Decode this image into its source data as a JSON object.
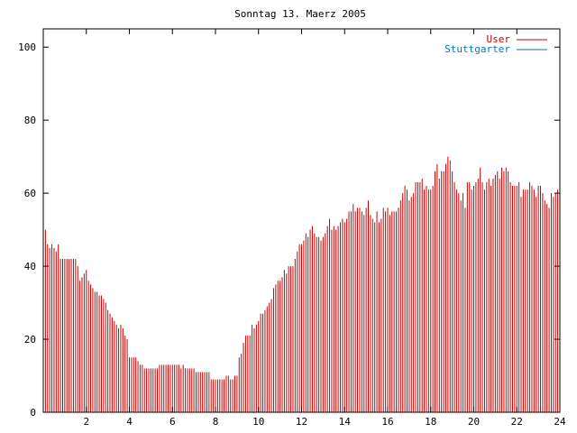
{
  "chart_data": {
    "type": "bar",
    "title": "Sonntag 13. Maerz 2005",
    "xlabel": "",
    "ylabel": "",
    "xlim": [
      0,
      24
    ],
    "ylim": [
      0,
      105
    ],
    "xticks": [
      2,
      4,
      6,
      8,
      10,
      12,
      14,
      16,
      18,
      20,
      22,
      24
    ],
    "yticks": [
      0,
      20,
      40,
      60,
      80,
      100
    ],
    "legend_position": "top-right",
    "series": [
      {
        "name": "User",
        "color": "#cc0000",
        "points": [
          [
            0.0,
            50
          ],
          [
            0.1,
            50
          ],
          [
            0.2,
            46
          ],
          [
            0.3,
            45
          ],
          [
            0.4,
            46
          ],
          [
            0.5,
            45
          ],
          [
            0.6,
            44
          ],
          [
            0.7,
            46
          ],
          [
            0.8,
            42
          ],
          [
            0.9,
            42
          ],
          [
            1.0,
            42
          ],
          [
            1.1,
            42
          ],
          [
            1.2,
            42
          ],
          [
            1.3,
            42
          ],
          [
            1.4,
            42
          ],
          [
            1.5,
            42
          ],
          [
            1.6,
            40
          ],
          [
            1.7,
            36
          ],
          [
            1.8,
            37
          ],
          [
            1.9,
            38
          ],
          [
            2.0,
            39
          ],
          [
            2.1,
            36
          ],
          [
            2.2,
            35
          ],
          [
            2.3,
            34
          ],
          [
            2.4,
            33
          ],
          [
            2.5,
            33
          ],
          [
            2.6,
            32
          ],
          [
            2.7,
            32
          ],
          [
            2.8,
            31
          ],
          [
            2.9,
            30
          ],
          [
            3.0,
            28
          ],
          [
            3.1,
            27
          ],
          [
            3.2,
            26
          ],
          [
            3.3,
            25
          ],
          [
            3.4,
            24
          ],
          [
            3.5,
            23
          ],
          [
            3.6,
            24
          ],
          [
            3.7,
            23
          ],
          [
            3.8,
            21
          ],
          [
            3.9,
            20
          ],
          [
            4.0,
            15
          ],
          [
            4.1,
            15
          ],
          [
            4.2,
            15
          ],
          [
            4.3,
            15
          ],
          [
            4.4,
            14
          ],
          [
            4.5,
            13
          ],
          [
            4.6,
            13
          ],
          [
            4.7,
            12
          ],
          [
            4.8,
            12
          ],
          [
            4.9,
            12
          ],
          [
            5.0,
            12
          ],
          [
            5.1,
            12
          ],
          [
            5.2,
            12
          ],
          [
            5.3,
            12
          ],
          [
            5.4,
            13
          ],
          [
            5.5,
            13
          ],
          [
            5.6,
            13
          ],
          [
            5.7,
            13
          ],
          [
            5.8,
            13
          ],
          [
            5.9,
            13
          ],
          [
            6.0,
            13
          ],
          [
            6.1,
            13
          ],
          [
            6.2,
            13
          ],
          [
            6.3,
            13
          ],
          [
            6.4,
            12
          ],
          [
            6.5,
            13
          ],
          [
            6.6,
            12
          ],
          [
            6.7,
            12
          ],
          [
            6.8,
            12
          ],
          [
            6.9,
            12
          ],
          [
            7.0,
            12
          ],
          [
            7.1,
            11
          ],
          [
            7.2,
            11
          ],
          [
            7.3,
            11
          ],
          [
            7.4,
            11
          ],
          [
            7.5,
            11
          ],
          [
            7.6,
            11
          ],
          [
            7.7,
            11
          ],
          [
            7.8,
            9
          ],
          [
            7.9,
            9
          ],
          [
            8.0,
            9
          ],
          [
            8.1,
            9
          ],
          [
            8.2,
            9
          ],
          [
            8.3,
            9
          ],
          [
            8.4,
            9
          ],
          [
            8.5,
            10
          ],
          [
            8.6,
            10
          ],
          [
            8.7,
            9
          ],
          [
            8.8,
            9
          ],
          [
            8.9,
            10
          ],
          [
            9.0,
            10
          ],
          [
            9.1,
            15
          ],
          [
            9.2,
            16
          ],
          [
            9.3,
            19
          ],
          [
            9.4,
            21
          ],
          [
            9.5,
            21
          ],
          [
            9.6,
            21
          ],
          [
            9.7,
            24
          ],
          [
            9.8,
            23
          ],
          [
            9.9,
            24
          ],
          [
            10.0,
            25
          ],
          [
            10.1,
            27
          ],
          [
            10.2,
            27
          ],
          [
            10.3,
            28
          ],
          [
            10.4,
            29
          ],
          [
            10.5,
            30
          ],
          [
            10.6,
            31
          ],
          [
            10.7,
            34
          ],
          [
            10.8,
            35
          ],
          [
            10.9,
            36
          ],
          [
            11.0,
            36
          ],
          [
            11.1,
            37
          ],
          [
            11.2,
            39
          ],
          [
            11.3,
            38
          ],
          [
            11.4,
            40
          ],
          [
            11.5,
            40
          ],
          [
            11.6,
            40
          ],
          [
            11.7,
            42
          ],
          [
            11.8,
            44
          ],
          [
            11.9,
            46
          ],
          [
            12.0,
            46
          ],
          [
            12.1,
            47
          ],
          [
            12.2,
            49
          ],
          [
            12.3,
            48
          ],
          [
            12.4,
            50
          ],
          [
            12.5,
            51
          ],
          [
            12.6,
            49
          ],
          [
            12.7,
            48
          ],
          [
            12.8,
            48
          ],
          [
            12.9,
            47
          ],
          [
            13.0,
            48
          ],
          [
            13.1,
            49
          ],
          [
            13.2,
            51
          ],
          [
            13.3,
            53
          ],
          [
            13.4,
            50
          ],
          [
            13.5,
            51
          ],
          [
            13.6,
            50
          ],
          [
            13.7,
            51
          ],
          [
            13.8,
            52
          ],
          [
            13.9,
            53
          ],
          [
            14.0,
            52
          ],
          [
            14.1,
            53
          ],
          [
            14.2,
            55
          ],
          [
            14.3,
            55
          ],
          [
            14.4,
            57
          ],
          [
            14.5,
            55
          ],
          [
            14.6,
            56
          ],
          [
            14.7,
            56
          ],
          [
            14.8,
            55
          ],
          [
            14.9,
            54
          ],
          [
            15.0,
            56
          ],
          [
            15.1,
            58
          ],
          [
            15.2,
            54
          ],
          [
            15.3,
            53
          ],
          [
            15.4,
            52
          ],
          [
            15.5,
            55
          ],
          [
            15.6,
            52
          ],
          [
            15.7,
            53
          ],
          [
            15.8,
            56
          ],
          [
            15.9,
            55
          ],
          [
            16.0,
            56
          ],
          [
            16.1,
            54
          ],
          [
            16.2,
            55
          ],
          [
            16.3,
            55
          ],
          [
            16.4,
            55
          ],
          [
            16.5,
            56
          ],
          [
            16.6,
            58
          ],
          [
            16.7,
            60
          ],
          [
            16.8,
            62
          ],
          [
            16.9,
            61
          ],
          [
            17.0,
            58
          ],
          [
            17.1,
            59
          ],
          [
            17.2,
            60
          ],
          [
            17.3,
            63
          ],
          [
            17.4,
            63
          ],
          [
            17.5,
            63
          ],
          [
            17.6,
            64
          ],
          [
            17.7,
            61
          ],
          [
            17.8,
            62
          ],
          [
            17.9,
            61
          ],
          [
            18.0,
            61
          ],
          [
            18.1,
            62
          ],
          [
            18.2,
            66
          ],
          [
            18.3,
            68
          ],
          [
            18.4,
            64
          ],
          [
            18.5,
            66
          ],
          [
            18.6,
            66
          ],
          [
            18.7,
            68
          ],
          [
            18.8,
            70
          ],
          [
            18.9,
            69
          ],
          [
            19.0,
            66
          ],
          [
            19.1,
            63
          ],
          [
            19.2,
            61
          ],
          [
            19.3,
            60
          ],
          [
            19.4,
            58
          ],
          [
            19.5,
            60
          ],
          [
            19.6,
            56
          ],
          [
            19.7,
            63
          ],
          [
            19.8,
            63
          ],
          [
            19.9,
            61
          ],
          [
            20.0,
            62
          ],
          [
            20.1,
            63
          ],
          [
            20.2,
            64
          ],
          [
            20.3,
            67
          ],
          [
            20.4,
            63
          ],
          [
            20.5,
            61
          ],
          [
            20.6,
            63
          ],
          [
            20.7,
            64
          ],
          [
            20.8,
            62
          ],
          [
            20.9,
            64
          ],
          [
            21.0,
            65
          ],
          [
            21.1,
            66
          ],
          [
            21.2,
            64
          ],
          [
            21.3,
            67
          ],
          [
            21.4,
            66
          ],
          [
            21.5,
            67
          ],
          [
            21.6,
            66
          ],
          [
            21.7,
            63
          ],
          [
            21.8,
            62
          ],
          [
            21.9,
            62
          ],
          [
            22.0,
            62
          ],
          [
            22.1,
            63
          ],
          [
            22.2,
            59
          ],
          [
            22.3,
            61
          ],
          [
            22.4,
            61
          ],
          [
            22.5,
            61
          ],
          [
            22.6,
            63
          ],
          [
            22.7,
            62
          ],
          [
            22.8,
            61
          ],
          [
            22.9,
            59
          ],
          [
            23.0,
            62
          ],
          [
            23.1,
            62
          ],
          [
            23.2,
            60
          ],
          [
            23.3,
            58
          ],
          [
            23.4,
            57
          ],
          [
            23.5,
            56
          ],
          [
            23.6,
            60
          ],
          [
            23.7,
            59
          ],
          [
            23.8,
            60
          ],
          [
            23.9,
            61
          ],
          [
            24.0,
            62
          ]
        ]
      },
      {
        "name": "Stuttgarter",
        "color": "#0077bb",
        "points": []
      }
    ]
  }
}
